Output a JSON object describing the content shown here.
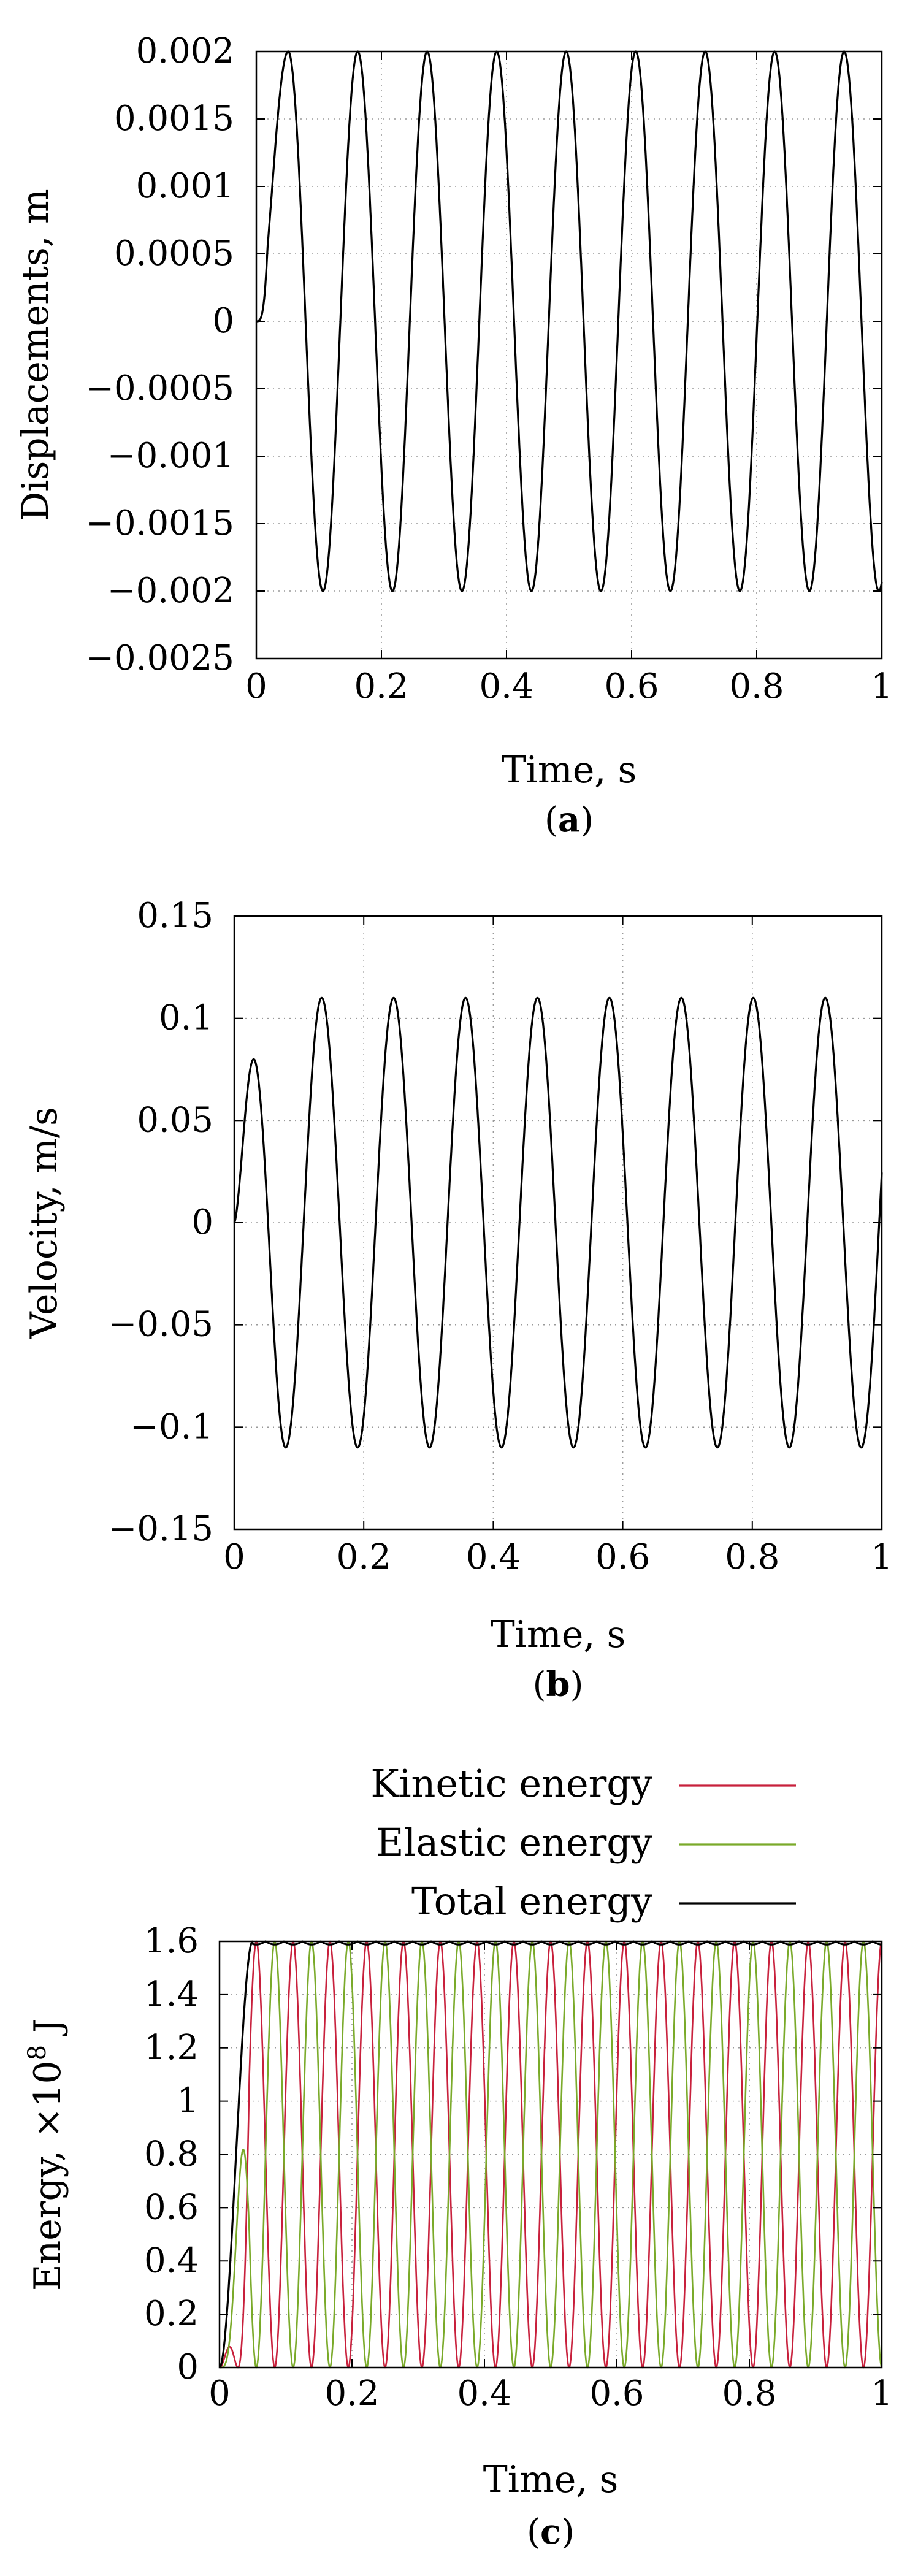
{
  "chart_data": [
    {
      "type": "line",
      "panel_label": "a",
      "xlabel": "Time, s",
      "ylabel": "Displacements, m",
      "xlim": [
        0,
        1
      ],
      "ylim": [
        -0.0025,
        0.002
      ],
      "xticks": [
        "0",
        "0.2",
        "0.4",
        "0.6",
        "0.8",
        "1"
      ],
      "yticks": [
        "0.002",
        "0.0015",
        "0.001",
        "0.0005",
        "0",
        "−0.0005",
        "−0.001",
        "−0.0015",
        "−0.002",
        "−0.0025"
      ],
      "grid": true,
      "series": [
        {
          "color": "#000000",
          "form": "sinusoid",
          "amplitude": 0.002,
          "period": 0.1111,
          "first_peak_time": 0.051,
          "start_value": 0,
          "start_slope": 0
        }
      ]
    },
    {
      "type": "line",
      "panel_label": "b",
      "xlabel": "Time, s",
      "ylabel": "Velocity, m/s",
      "xlim": [
        0,
        1
      ],
      "ylim": [
        -0.15,
        0.15
      ],
      "xticks": [
        "0",
        "0.2",
        "0.4",
        "0.6",
        "0.8",
        "1"
      ],
      "yticks": [
        "0.15",
        "0.1",
        "0.05",
        "0",
        "−0.05",
        "−0.1",
        "−0.15"
      ],
      "grid": true,
      "series": [
        {
          "color": "#000000",
          "form": "sinusoid",
          "amplitude": 0.11,
          "period": 0.1111,
          "first_peak_time": 0.135,
          "first_peak": {
            "x": 0.03,
            "y": 0.08
          },
          "start_value": 0
        }
      ]
    },
    {
      "type": "line",
      "panel_label": "c",
      "xlabel": "Time, s",
      "ylabel": "Energy, ×10",
      "ylabel_sup": "8",
      "ylabel_unit": " J",
      "xlim": [
        0,
        1
      ],
      "ylim": [
        0,
        1.6
      ],
      "xticks": [
        "0",
        "0.2",
        "0.4",
        "0.6",
        "0.8",
        "1"
      ],
      "yticks": [
        "1.6",
        "1.4",
        "1.2",
        "1",
        "0.8",
        "0.6",
        "0.4",
        "0.2",
        "0"
      ],
      "grid": true,
      "legend_position": "above",
      "series": [
        {
          "name": "Kinetic energy",
          "color": "#c8203c",
          "form": "sin_squared",
          "max": 1.6,
          "period": 0.05556,
          "first_peak_time": 0.0
        },
        {
          "name": "Elastic energy",
          "color": "#7aaa2a",
          "form": "sin_squared",
          "max": 1.6,
          "period": 0.05556,
          "first_peak_time": 0.0278
        },
        {
          "name": "Total energy",
          "color": "#000000",
          "form": "constant_after_ramp",
          "value": 1.6,
          "ramp_end": 0.05
        }
      ]
    }
  ]
}
